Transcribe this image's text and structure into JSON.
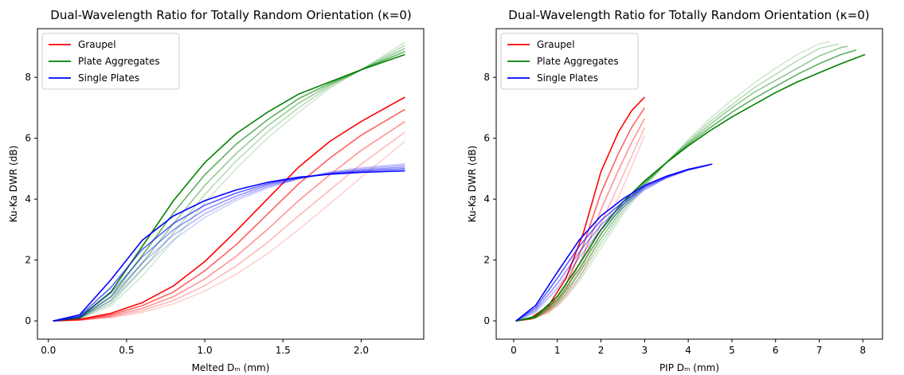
{
  "chart_data": [
    {
      "type": "line",
      "title": "Dual-Wavelength Ratio for Totally Random Orientation (κ=0)",
      "xlabel": "Melted Dₘ (mm)",
      "ylabel": "Ku-Ka DWR (dB)",
      "xlim": [
        -0.07,
        2.4
      ],
      "ylim": [
        -0.6,
        9.6
      ],
      "xticks": [
        "0.0",
        "0.5",
        "1.0",
        "1.5",
        "2.0"
      ],
      "yticks": [
        "0",
        "2",
        "4",
        "6",
        "8"
      ],
      "legend": "top-left",
      "series": [
        {
          "name": "Graupel",
          "color": "#ff0000",
          "x": [
            0.03,
            0.2,
            0.4,
            0.6,
            0.8,
            1.0,
            1.2,
            1.4,
            1.6,
            1.8,
            2.0,
            2.28
          ],
          "curves": [
            [
              0.0,
              0.05,
              0.25,
              0.6,
              1.15,
              1.95,
              2.95,
              4.0,
              5.05,
              5.9,
              6.55,
              7.35
            ],
            [
              0.0,
              0.04,
              0.2,
              0.5,
              0.95,
              1.65,
              2.5,
              3.5,
              4.5,
              5.35,
              6.1,
              6.95
            ],
            [
              0.0,
              0.03,
              0.16,
              0.41,
              0.8,
              1.38,
              2.12,
              3.0,
              3.95,
              4.8,
              5.6,
              6.55
            ],
            [
              0.0,
              0.03,
              0.13,
              0.34,
              0.67,
              1.16,
              1.8,
              2.57,
              3.45,
              4.3,
              5.15,
              6.2
            ],
            [
              0.0,
              0.02,
              0.11,
              0.28,
              0.56,
              0.98,
              1.53,
              2.2,
              3.0,
              3.85,
              4.72,
              5.9
            ]
          ]
        },
        {
          "name": "Plate Aggregates",
          "color": "#008000",
          "x": [
            0.03,
            0.2,
            0.4,
            0.6,
            0.8,
            1.0,
            1.2,
            1.4,
            1.6,
            1.8,
            2.0,
            2.28
          ],
          "curves": [
            [
              0.0,
              0.12,
              0.95,
              2.45,
              3.95,
              5.2,
              6.15,
              6.85,
              7.45,
              7.85,
              8.25,
              8.75
            ],
            [
              0.0,
              0.1,
              0.8,
              2.15,
              3.55,
              4.8,
              5.8,
              6.6,
              7.3,
              7.8,
              8.25,
              8.85
            ],
            [
              0.0,
              0.09,
              0.68,
              1.9,
              3.2,
              4.45,
              5.5,
              6.4,
              7.15,
              7.75,
              8.25,
              8.95
            ],
            [
              0.0,
              0.08,
              0.58,
              1.68,
              2.9,
              4.15,
              5.25,
              6.2,
              7.0,
              7.7,
              8.25,
              9.05
            ],
            [
              0.0,
              0.07,
              0.5,
              1.48,
              2.63,
              3.88,
              5.0,
              6.0,
              6.85,
              7.65,
              8.25,
              9.15
            ]
          ]
        },
        {
          "name": "Single Plates",
          "color": "#0000ff",
          "x": [
            0.03,
            0.2,
            0.4,
            0.6,
            0.8,
            1.0,
            1.2,
            1.4,
            1.6,
            1.8,
            2.0,
            2.28
          ],
          "curves": [
            [
              0.0,
              0.2,
              1.35,
              2.65,
              3.45,
              3.95,
              4.3,
              4.55,
              4.72,
              4.82,
              4.88,
              4.93
            ],
            [
              0.0,
              0.16,
              1.1,
              2.35,
              3.2,
              3.8,
              4.2,
              4.5,
              4.7,
              4.83,
              4.92,
              5.0
            ],
            [
              0.0,
              0.13,
              0.92,
              2.1,
              3.0,
              3.65,
              4.1,
              4.45,
              4.68,
              4.85,
              4.96,
              5.06
            ],
            [
              0.0,
              0.11,
              0.78,
              1.9,
              2.82,
              3.52,
              4.02,
              4.4,
              4.67,
              4.87,
              5.0,
              5.12
            ],
            [
              0.0,
              0.09,
              0.66,
              1.72,
              2.66,
              3.4,
              3.95,
              4.36,
              4.66,
              4.89,
              5.04,
              5.16
            ]
          ]
        }
      ]
    },
    {
      "type": "line",
      "title": "Dual-Wavelength Ratio for Totally Random Orientation (κ=0)",
      "xlabel": "PIP Dₘ (mm)",
      "ylabel": "Ku-Ka DWR (dB)",
      "xlim": [
        -0.4,
        8.45
      ],
      "ylim": [
        -0.6,
        9.6
      ],
      "xticks": [
        "0",
        "1",
        "2",
        "3",
        "4",
        "5",
        "6",
        "7",
        "8"
      ],
      "yticks": [
        "0",
        "2",
        "4",
        "6",
        "8"
      ],
      "legend": "top-left",
      "series": [
        {
          "name": "Graupel",
          "color": "#ff0000",
          "curves": [
            {
              "x": [
                0.05,
                0.4,
                0.8,
                1.2,
                1.6,
                2.0,
                2.4,
                2.7,
                3.0
              ],
              "y": [
                0.0,
                0.1,
                0.5,
                1.4,
                2.9,
                4.9,
                6.2,
                6.9,
                7.35
              ]
            },
            {
              "x": [
                0.05,
                0.4,
                0.8,
                1.2,
                1.6,
                2.0,
                2.4,
                2.7,
                3.0
              ],
              "y": [
                0.0,
                0.08,
                0.42,
                1.2,
                2.5,
                4.2,
                5.5,
                6.35,
                7.0
              ]
            },
            {
              "x": [
                0.05,
                0.4,
                0.8,
                1.2,
                1.6,
                2.0,
                2.4,
                2.7,
                3.0
              ],
              "y": [
                0.0,
                0.07,
                0.35,
                1.02,
                2.15,
                3.65,
                4.95,
                5.85,
                6.65
              ]
            },
            {
              "x": [
                0.05,
                0.4,
                0.8,
                1.2,
                1.6,
                2.0,
                2.4,
                2.7,
                3.0
              ],
              "y": [
                0.0,
                0.06,
                0.3,
                0.88,
                1.85,
                3.2,
                4.45,
                5.4,
                6.35
              ]
            },
            {
              "x": [
                0.05,
                0.4,
                0.8,
                1.2,
                1.6,
                2.0,
                2.4,
                2.7,
                3.0
              ],
              "y": [
                0.0,
                0.05,
                0.26,
                0.76,
                1.62,
                2.85,
                4.05,
                5.05,
                6.1
              ]
            }
          ]
        },
        {
          "name": "Plate Aggregates",
          "color": "#008000",
          "curves": [
            {
              "x": [
                0.05,
                0.5,
                1.0,
                1.5,
                2.0,
                2.5,
                3.0,
                3.5,
                4.0,
                4.5,
                5.0,
                5.5,
                6.0,
                6.5,
                7.0,
                7.5,
                8.05
              ],
              "y": [
                0.0,
                0.15,
                0.8,
                1.85,
                3.0,
                3.9,
                4.6,
                5.2,
                5.75,
                6.25,
                6.7,
                7.1,
                7.5,
                7.85,
                8.15,
                8.45,
                8.75
              ]
            },
            {
              "x": [
                0.05,
                0.5,
                1.0,
                1.5,
                2.0,
                2.5,
                3.0,
                3.5,
                4.0,
                4.5,
                5.0,
                5.5,
                6.0,
                6.5,
                7.0,
                7.5,
                7.85
              ],
              "y": [
                0.0,
                0.13,
                0.7,
                1.7,
                2.85,
                3.8,
                4.55,
                5.2,
                5.8,
                6.35,
                6.85,
                7.3,
                7.7,
                8.1,
                8.45,
                8.75,
                8.9
              ]
            },
            {
              "x": [
                0.05,
                0.5,
                1.0,
                1.5,
                2.0,
                2.5,
                3.0,
                3.5,
                4.0,
                4.5,
                5.0,
                5.5,
                6.0,
                6.5,
                7.0,
                7.5,
                7.65
              ],
              "y": [
                0.0,
                0.11,
                0.62,
                1.55,
                2.7,
                3.7,
                4.5,
                5.2,
                5.85,
                6.45,
                7.0,
                7.5,
                7.9,
                8.3,
                8.7,
                8.98,
                9.02
              ]
            },
            {
              "x": [
                0.05,
                0.5,
                1.0,
                1.5,
                2.0,
                2.5,
                3.0,
                3.5,
                4.0,
                4.5,
                5.0,
                5.5,
                6.0,
                6.5,
                7.0,
                7.45
              ],
              "y": [
                0.0,
                0.1,
                0.55,
                1.42,
                2.55,
                3.6,
                4.45,
                5.2,
                5.9,
                6.55,
                7.1,
                7.65,
                8.1,
                8.55,
                8.95,
                9.1
              ]
            },
            {
              "x": [
                0.05,
                0.5,
                1.0,
                1.5,
                2.0,
                2.5,
                3.0,
                3.5,
                4.0,
                4.5,
                5.0,
                5.5,
                6.0,
                6.5,
                7.0,
                7.25
              ],
              "y": [
                0.0,
                0.09,
                0.49,
                1.3,
                2.4,
                3.5,
                4.4,
                5.2,
                5.95,
                6.65,
                7.25,
                7.8,
                8.3,
                8.75,
                9.1,
                9.18
              ]
            }
          ]
        },
        {
          "name": "Single Plates",
          "color": "#0000ff",
          "curves": [
            {
              "x": [
                0.05,
                0.5,
                1.0,
                1.5,
                2.0,
                2.5,
                3.0,
                3.5,
                4.0,
                4.55
              ],
              "y": [
                0.0,
                0.5,
                1.6,
                2.65,
                3.45,
                4.0,
                4.45,
                4.75,
                4.98,
                5.15
              ]
            },
            {
              "x": [
                0.05,
                0.5,
                1.0,
                1.5,
                2.0,
                2.5,
                3.0,
                3.5,
                4.0,
                4.5
              ],
              "y": [
                0.0,
                0.42,
                1.4,
                2.45,
                3.3,
                3.9,
                4.4,
                4.73,
                4.97,
                5.13
              ]
            },
            {
              "x": [
                0.05,
                0.5,
                1.0,
                1.5,
                2.0,
                2.5,
                3.0,
                3.5,
                4.0,
                4.45
              ],
              "y": [
                0.0,
                0.35,
                1.22,
                2.25,
                3.15,
                3.82,
                4.35,
                4.71,
                4.96,
                5.11
              ]
            },
            {
              "x": [
                0.05,
                0.5,
                1.0,
                1.5,
                2.0,
                2.5,
                3.0,
                3.5,
                4.0,
                4.4
              ],
              "y": [
                0.0,
                0.29,
                1.07,
                2.07,
                3.0,
                3.73,
                4.3,
                4.69,
                4.95,
                5.09
              ]
            }
          ]
        }
      ]
    }
  ]
}
